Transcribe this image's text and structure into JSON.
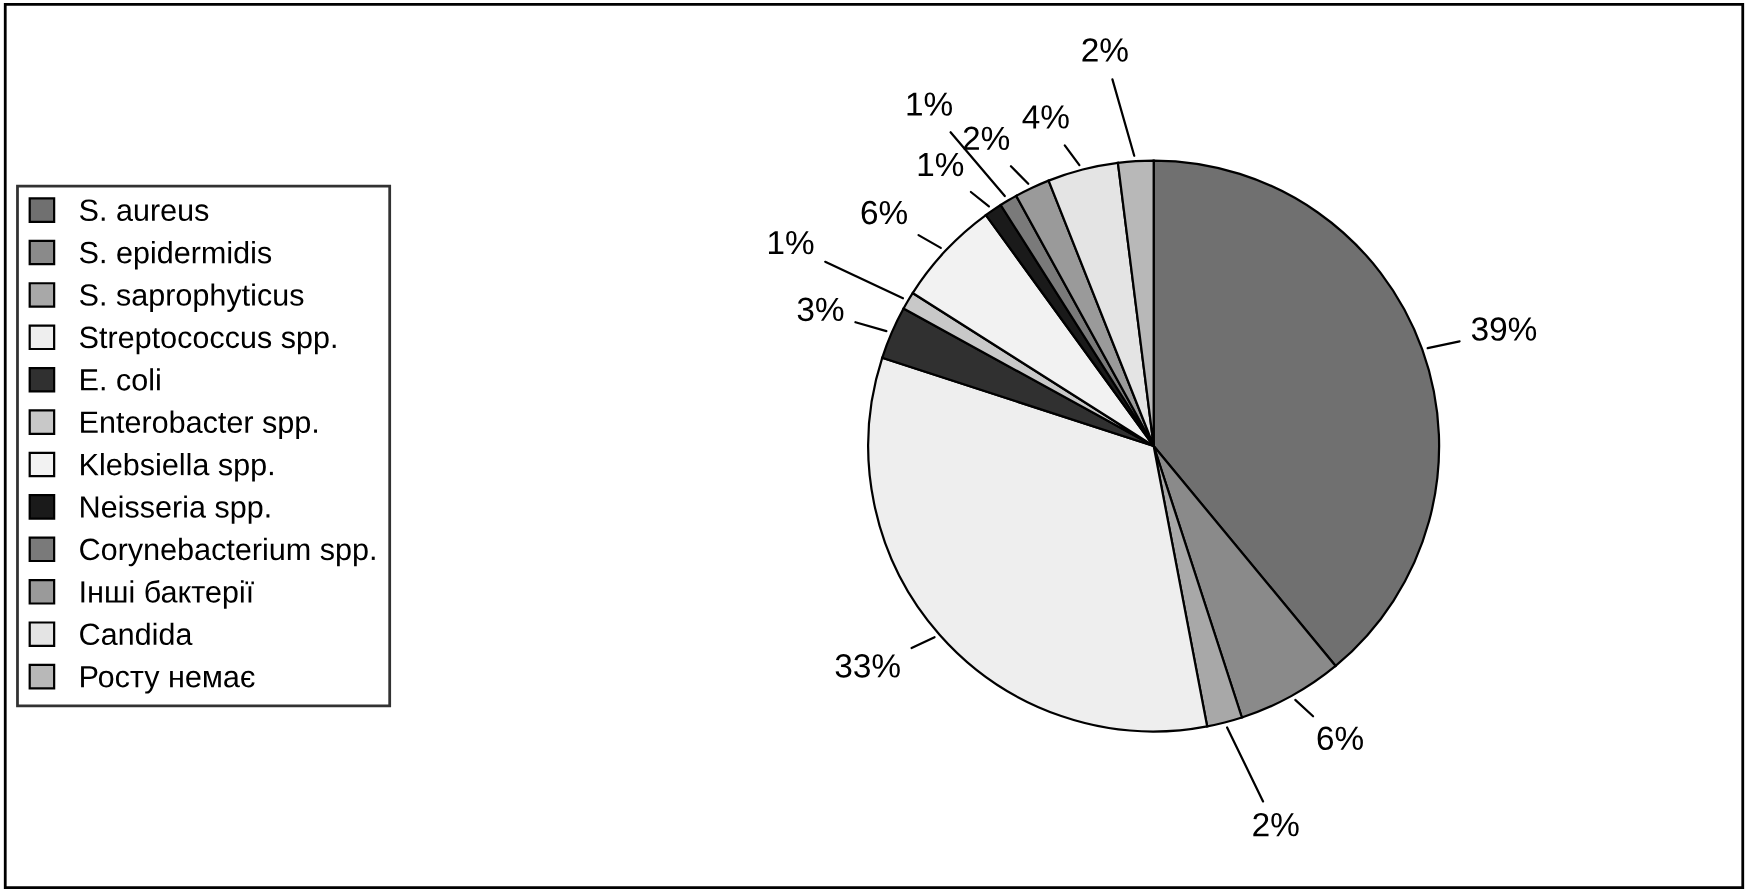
{
  "chart_data": {
    "type": "pie",
    "categories": [
      "S. aureus",
      "S. epidermidis",
      "S. saprophyticus",
      "Streptococcus spp.",
      "E. coli",
      "Enterobacter spp.",
      "Klebsiella spp.",
      "Neisseria spp.",
      "Corynebacterium spp.",
      "Інші бактерії",
      "Candida",
      "Росту немає"
    ],
    "values": [
      39,
      6,
      2,
      33,
      3,
      1,
      6,
      1,
      1,
      2,
      4,
      2
    ],
    "value_labels": [
      "39%",
      "6%",
      "2%",
      "33%",
      "3%",
      "1%",
      "6%",
      "1%",
      "1%",
      "2%",
      "4%",
      "2%"
    ],
    "colors": [
      "#707070",
      "#8a8a8a",
      "#a8a8a8",
      "#eeeeee",
      "#303030",
      "#c8c8c8",
      "#f2f2f2",
      "#1a1a1a",
      "#7a7a7a",
      "#9a9a9a",
      "#e4e4e4",
      "#b8b8b8"
    ],
    "legend": "left"
  }
}
